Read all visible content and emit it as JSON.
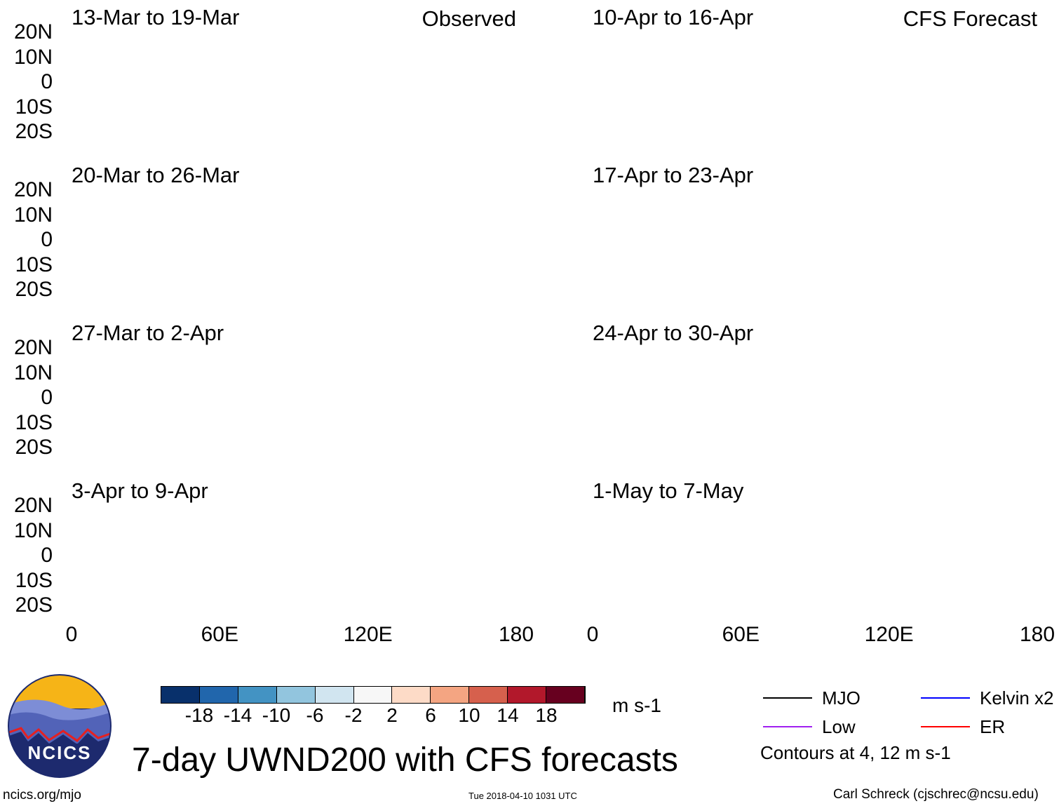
{
  "panels": {
    "observed_label": "Observed",
    "forecast_label": "CFS Forecast",
    "left": [
      "13-Mar to 19-Mar",
      "20-Mar to 26-Mar",
      "27-Mar to 2-Apr",
      "3-Apr to 9-Apr"
    ],
    "right": [
      "10-Apr to 16-Apr",
      "17-Apr to 23-Apr",
      "24-Apr to 30-Apr",
      "1-May to 7-May"
    ]
  },
  "axes": {
    "lat_ticks": [
      "20N",
      "10N",
      "0",
      "10S",
      "20S"
    ],
    "lon_ticks": [
      "0",
      "60E",
      "120E",
      "180"
    ]
  },
  "colorbar": {
    "colors": [
      "#08306b",
      "#2166ac",
      "#4393c3",
      "#92c5de",
      "#d1e5f0",
      "#f7f7f7",
      "#fddbc7",
      "#f4a582",
      "#d6604d",
      "#b2182b",
      "#67001f"
    ],
    "labels": [
      "-18",
      "-14",
      "-10",
      "-6",
      "-2",
      "2",
      "6",
      "10",
      "14",
      "18"
    ],
    "units": "m s-1"
  },
  "legend": {
    "items": [
      {
        "label": "MJO",
        "color": "#000000"
      },
      {
        "label": "Kelvin x2",
        "color": "#0000ff"
      },
      {
        "label": "Low",
        "color": "#a020f0"
      },
      {
        "label": "ER",
        "color": "#ff0000"
      }
    ],
    "note": "Contours at 4, 12 m s-1"
  },
  "title": "7-day UWND200 with CFS forecasts",
  "logo_text": "NCICS",
  "footer": {
    "url": "ncics.org/mjo",
    "timestamp": "Tue 2018-04-10 1031 UTC",
    "author": "Carl Schreck (cjschrec@ncsu.edu)"
  }
}
